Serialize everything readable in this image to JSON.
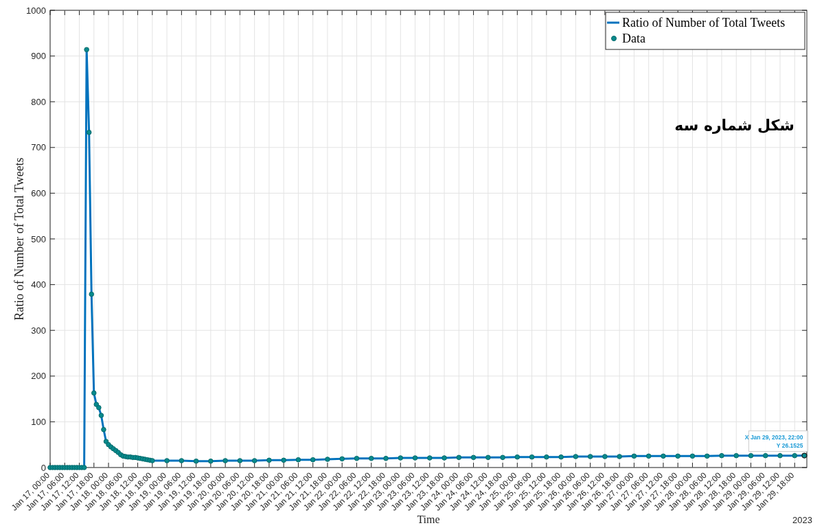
{
  "chart_data": {
    "type": "line",
    "xlabel": "Time",
    "ylabel": "Ratio of Number of Total Tweets",
    "x": [
      "2023-01-17T00:00",
      "2023-01-17T01:00",
      "2023-01-17T02:00",
      "2023-01-17T03:00",
      "2023-01-17T04:00",
      "2023-01-17T05:00",
      "2023-01-17T06:00",
      "2023-01-17T07:00",
      "2023-01-17T08:00",
      "2023-01-17T09:00",
      "2023-01-17T10:00",
      "2023-01-17T11:00",
      "2023-01-17T12:00",
      "2023-01-17T13:00",
      "2023-01-17T14:00",
      "2023-01-17T15:00",
      "2023-01-17T16:00",
      "2023-01-17T17:00",
      "2023-01-17T18:00",
      "2023-01-17T19:00",
      "2023-01-17T20:00",
      "2023-01-17T21:00",
      "2023-01-17T22:00",
      "2023-01-17T23:00",
      "2023-01-18T00:00",
      "2023-01-18T01:00",
      "2023-01-18T02:00",
      "2023-01-18T03:00",
      "2023-01-18T04:00",
      "2023-01-18T05:00",
      "2023-01-18T06:00",
      "2023-01-18T07:00",
      "2023-01-18T08:00",
      "2023-01-18T09:00",
      "2023-01-18T10:00",
      "2023-01-18T11:00",
      "2023-01-18T12:00",
      "2023-01-18T13:00",
      "2023-01-18T14:00",
      "2023-01-18T15:00",
      "2023-01-18T16:00",
      "2023-01-18T17:00",
      "2023-01-18T18:00",
      "2023-01-19T00:00",
      "2023-01-19T06:00",
      "2023-01-19T12:00",
      "2023-01-19T18:00",
      "2023-01-20T00:00",
      "2023-01-20T06:00",
      "2023-01-20T12:00",
      "2023-01-20T18:00",
      "2023-01-21T00:00",
      "2023-01-21T06:00",
      "2023-01-21T12:00",
      "2023-01-21T18:00",
      "2023-01-22T00:00",
      "2023-01-22T06:00",
      "2023-01-22T12:00",
      "2023-01-22T18:00",
      "2023-01-23T00:00",
      "2023-01-23T06:00",
      "2023-01-23T12:00",
      "2023-01-23T18:00",
      "2023-01-24T00:00",
      "2023-01-24T06:00",
      "2023-01-24T12:00",
      "2023-01-24T18:00",
      "2023-01-25T00:00",
      "2023-01-25T06:00",
      "2023-01-25T12:00",
      "2023-01-25T18:00",
      "2023-01-26T00:00",
      "2023-01-26T06:00",
      "2023-01-26T12:00",
      "2023-01-26T18:00",
      "2023-01-27T00:00",
      "2023-01-27T06:00",
      "2023-01-27T12:00",
      "2023-01-27T18:00",
      "2023-01-28T00:00",
      "2023-01-28T06:00",
      "2023-01-28T12:00",
      "2023-01-28T18:00",
      "2023-01-29T00:00",
      "2023-01-29T06:00",
      "2023-01-29T12:00",
      "2023-01-29T18:00",
      "2023-01-29T22:00"
    ],
    "series": [
      {
        "name": "Ratio of Number of Total Tweets",
        "type": "line",
        "marker": "none",
        "color": "#0072bd",
        "values": [
          null,
          null,
          null,
          null,
          null,
          null,
          null,
          null,
          null,
          null,
          null,
          null,
          null,
          0,
          0,
          914,
          733,
          379,
          163,
          138,
          131,
          114,
          83,
          57,
          50,
          45,
          41,
          37,
          33,
          28,
          25,
          24,
          23,
          23,
          22,
          22,
          21,
          20,
          19,
          18,
          17,
          16,
          15,
          15,
          15,
          14,
          14,
          15,
          15,
          15,
          16,
          16,
          17,
          17,
          18,
          19,
          20,
          20,
          20,
          21,
          21,
          21,
          21,
          22,
          22,
          22,
          22,
          23,
          23,
          23,
          23,
          24,
          24,
          24,
          24,
          25,
          25,
          25,
          25,
          25,
          25,
          26,
          26,
          26,
          26,
          26,
          26,
          26.1525
        ]
      },
      {
        "name": "Data",
        "type": "scatter",
        "marker": "circle",
        "color": "#078a8c",
        "values": [
          0,
          0,
          0,
          0,
          0,
          0,
          0,
          0,
          0,
          0,
          0,
          0,
          0,
          0,
          0,
          914,
          733,
          379,
          163,
          138,
          131,
          114,
          83,
          57,
          50,
          45,
          41,
          37,
          33,
          28,
          25,
          24,
          23,
          23,
          22,
          22,
          21,
          20,
          19,
          18,
          17,
          16,
          15,
          15,
          15,
          14,
          14,
          15,
          15,
          15,
          16,
          16,
          17,
          17,
          18,
          19,
          20,
          20,
          20,
          21,
          21,
          21,
          21,
          22,
          22,
          22,
          22,
          23,
          23,
          23,
          23,
          24,
          24,
          24,
          24,
          25,
          25,
          25,
          25,
          25,
          25,
          26,
          26,
          26,
          26,
          26,
          26,
          26.1525
        ]
      }
    ],
    "xlim": [
      "2023-01-17T00:00",
      "2023-01-29T23:00"
    ],
    "xticks": [
      {
        "value": "2023-01-17T00:00",
        "label": "Jan 17, 00:00"
      },
      {
        "value": "2023-01-17T06:00",
        "label": "Jan 17, 06:00"
      },
      {
        "value": "2023-01-17T12:00",
        "label": "Jan 17, 12:00"
      },
      {
        "value": "2023-01-17T18:00",
        "label": "Jan 17, 18:00"
      },
      {
        "value": "2023-01-18T00:00",
        "label": "Jan 18, 00:00"
      },
      {
        "value": "2023-01-18T06:00",
        "label": "Jan 18, 06:00"
      },
      {
        "value": "2023-01-18T12:00",
        "label": "Jan 18, 12:00"
      },
      {
        "value": "2023-01-18T18:00",
        "label": "Jan 18, 18:00"
      },
      {
        "value": "2023-01-19T00:00",
        "label": "Jan 19, 00:00"
      },
      {
        "value": "2023-01-19T06:00",
        "label": "Jan 19, 06:00"
      },
      {
        "value": "2023-01-19T12:00",
        "label": "Jan 19, 12:00"
      },
      {
        "value": "2023-01-19T18:00",
        "label": "Jan 19, 18:00"
      },
      {
        "value": "2023-01-20T00:00",
        "label": "Jan 20, 00:00"
      },
      {
        "value": "2023-01-20T06:00",
        "label": "Jan 20, 06:00"
      },
      {
        "value": "2023-01-20T12:00",
        "label": "Jan 20, 12:00"
      },
      {
        "value": "2023-01-20T18:00",
        "label": "Jan 20, 18:00"
      },
      {
        "value": "2023-01-21T00:00",
        "label": "Jan 21, 00:00"
      },
      {
        "value": "2023-01-21T06:00",
        "label": "Jan 21, 06:00"
      },
      {
        "value": "2023-01-21T12:00",
        "label": "Jan 21, 12:00"
      },
      {
        "value": "2023-01-21T18:00",
        "label": "Jan 21, 18:00"
      },
      {
        "value": "2023-01-22T00:00",
        "label": "Jan 22, 00:00"
      },
      {
        "value": "2023-01-22T06:00",
        "label": "Jan 22, 06:00"
      },
      {
        "value": "2023-01-22T12:00",
        "label": "Jan 22, 12:00"
      },
      {
        "value": "2023-01-22T18:00",
        "label": "Jan 22, 18:00"
      },
      {
        "value": "2023-01-23T00:00",
        "label": "Jan 23, 00:00"
      },
      {
        "value": "2023-01-23T06:00",
        "label": "Jan 23, 06:00"
      },
      {
        "value": "2023-01-23T12:00",
        "label": "Jan 23, 12:00"
      },
      {
        "value": "2023-01-23T18:00",
        "label": "Jan 23, 18:00"
      },
      {
        "value": "2023-01-24T00:00",
        "label": "Jan 24, 00:00"
      },
      {
        "value": "2023-01-24T06:00",
        "label": "Jan 24, 06:00"
      },
      {
        "value": "2023-01-24T12:00",
        "label": "Jan 24, 12:00"
      },
      {
        "value": "2023-01-24T18:00",
        "label": "Jan 24, 18:00"
      },
      {
        "value": "2023-01-25T00:00",
        "label": "Jan 25, 00:00"
      },
      {
        "value": "2023-01-25T06:00",
        "label": "Jan 25, 06:00"
      },
      {
        "value": "2023-01-25T12:00",
        "label": "Jan 25, 12:00"
      },
      {
        "value": "2023-01-25T18:00",
        "label": "Jan 25, 18:00"
      },
      {
        "value": "2023-01-26T00:00",
        "label": "Jan 26, 00:00"
      },
      {
        "value": "2023-01-26T06:00",
        "label": "Jan 26, 06:00"
      },
      {
        "value": "2023-01-26T12:00",
        "label": "Jan 26, 12:00"
      },
      {
        "value": "2023-01-26T18:00",
        "label": "Jan 26, 18:00"
      },
      {
        "value": "2023-01-27T00:00",
        "label": "Jan 27, 00:00"
      },
      {
        "value": "2023-01-27T06:00",
        "label": "Jan 27, 06:00"
      },
      {
        "value": "2023-01-27T12:00",
        "label": "Jan 27, 12:00"
      },
      {
        "value": "2023-01-27T18:00",
        "label": "Jan 27, 18:00"
      },
      {
        "value": "2023-01-28T00:00",
        "label": "Jan 28, 00:00"
      },
      {
        "value": "2023-01-28T06:00",
        "label": "Jan 28, 06:00"
      },
      {
        "value": "2023-01-28T12:00",
        "label": "Jan 28, 12:00"
      },
      {
        "value": "2023-01-28T18:00",
        "label": "Jan 28, 18:00"
      },
      {
        "value": "2023-01-29T00:00",
        "label": "Jan 29, 00:00"
      },
      {
        "value": "2023-01-29T06:00",
        "label": "Jan 29, 06:00"
      },
      {
        "value": "2023-01-29T12:00",
        "label": "Jan 29, 12:00"
      },
      {
        "value": "2023-01-29T18:00",
        "label": "Jan 29, 18:00"
      }
    ],
    "ylim": [
      0,
      1000
    ],
    "yticks": [
      0,
      100,
      200,
      300,
      400,
      500,
      600,
      700,
      800,
      900,
      1000
    ],
    "grid": true,
    "legend": "top right",
    "annotations": [
      "شکل شماره سه",
      "2023",
      {
        "text": "X Jan 29, 2023, 22:00\nY 26.1525",
        "x": "2023-01-29T22:00",
        "y": 26.1525
      }
    ]
  }
}
